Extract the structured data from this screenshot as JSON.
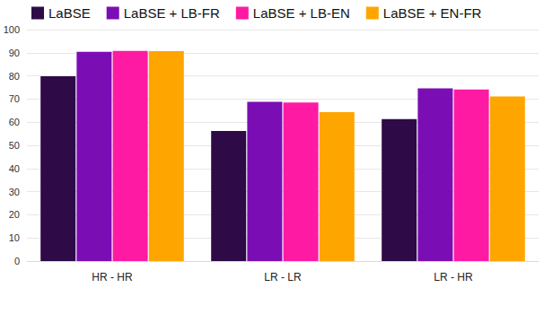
{
  "chart_data": {
    "type": "bar",
    "categories": [
      "HR - HR",
      "LR - LR",
      "LR - HR"
    ],
    "series": [
      {
        "name": "LaBSE",
        "color": "#2e0a47",
        "values": [
          79.8,
          56.2,
          61.3
        ]
      },
      {
        "name": "LaBSE + LB-FR",
        "color": "#7b0db5",
        "values": [
          90.4,
          68.8,
          74.6
        ]
      },
      {
        "name": "LaBSE + LB-EN",
        "color": "#ff1aa3",
        "values": [
          90.8,
          68.5,
          74.1
        ]
      },
      {
        "name": "LaBSE + EN-FR",
        "color": "#ffa500",
        "values": [
          90.7,
          64.3,
          71.1
        ]
      }
    ],
    "ylim": [
      0,
      100
    ],
    "yticks": [
      0,
      10,
      20,
      30,
      40,
      50,
      60,
      70,
      80,
      90,
      100
    ],
    "grid": true,
    "legend": "top-left"
  }
}
